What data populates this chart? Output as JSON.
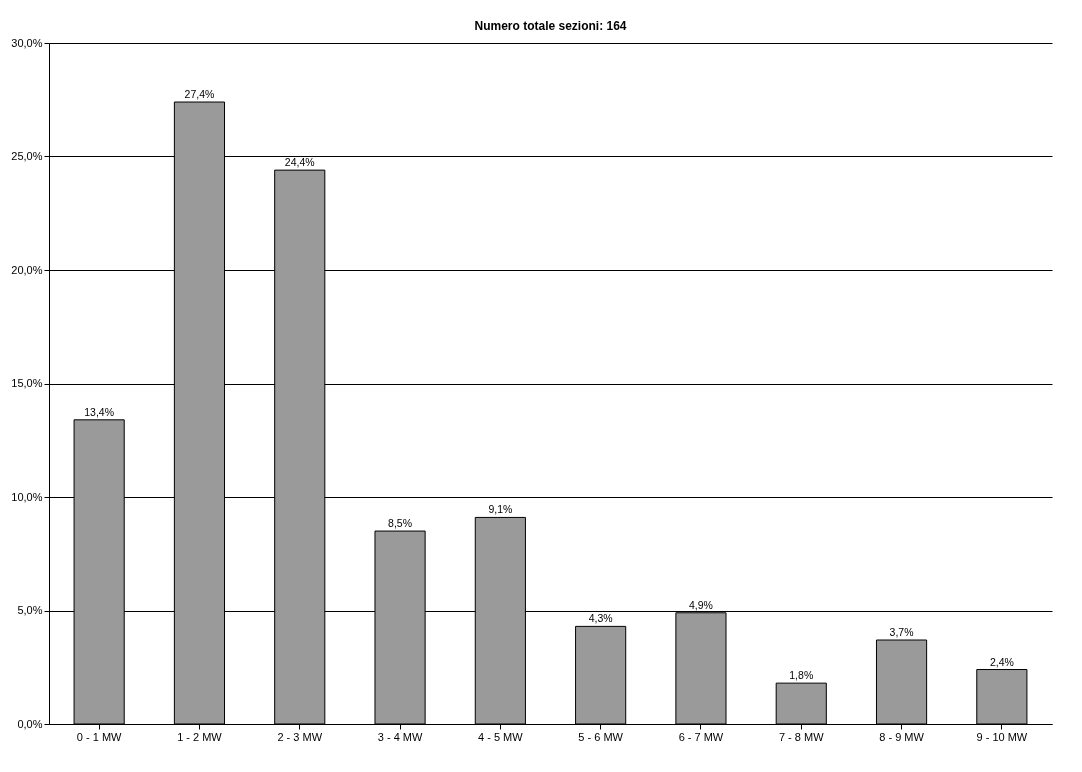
{
  "chart_data": {
    "type": "bar",
    "title": "Numero totale sezioni: 164",
    "categories": [
      "0 - 1 MW",
      "1 - 2 MW",
      "2 - 3 MW",
      "3 - 4 MW",
      "4 - 5 MW",
      "5 - 6 MW",
      "6 - 7 MW",
      "7 - 8 MW",
      "8 - 9 MW",
      "9 - 10 MW"
    ],
    "values": [
      13.4,
      27.4,
      24.4,
      8.5,
      9.1,
      4.3,
      4.9,
      1.8,
      3.7,
      2.4
    ],
    "value_labels": [
      "13,4%",
      "27,4%",
      "24,4%",
      "8,5%",
      "9,1%",
      "4,3%",
      "4,9%",
      "1,8%",
      "3,7%",
      "2,4%"
    ],
    "color": "#9a9a9a",
    "ylim": [
      0,
      30
    ],
    "yticks": [
      {
        "value": 0,
        "label": "0,0%"
      },
      {
        "value": 5,
        "label": "5,0%"
      },
      {
        "value": 10,
        "label": "10,0%"
      },
      {
        "value": 15,
        "label": "15,0%"
      },
      {
        "value": 20,
        "label": "20,0%"
      },
      {
        "value": 25,
        "label": "25,0%"
      },
      {
        "value": 30,
        "label": "30,0%"
      }
    ],
    "grid": "y"
  }
}
